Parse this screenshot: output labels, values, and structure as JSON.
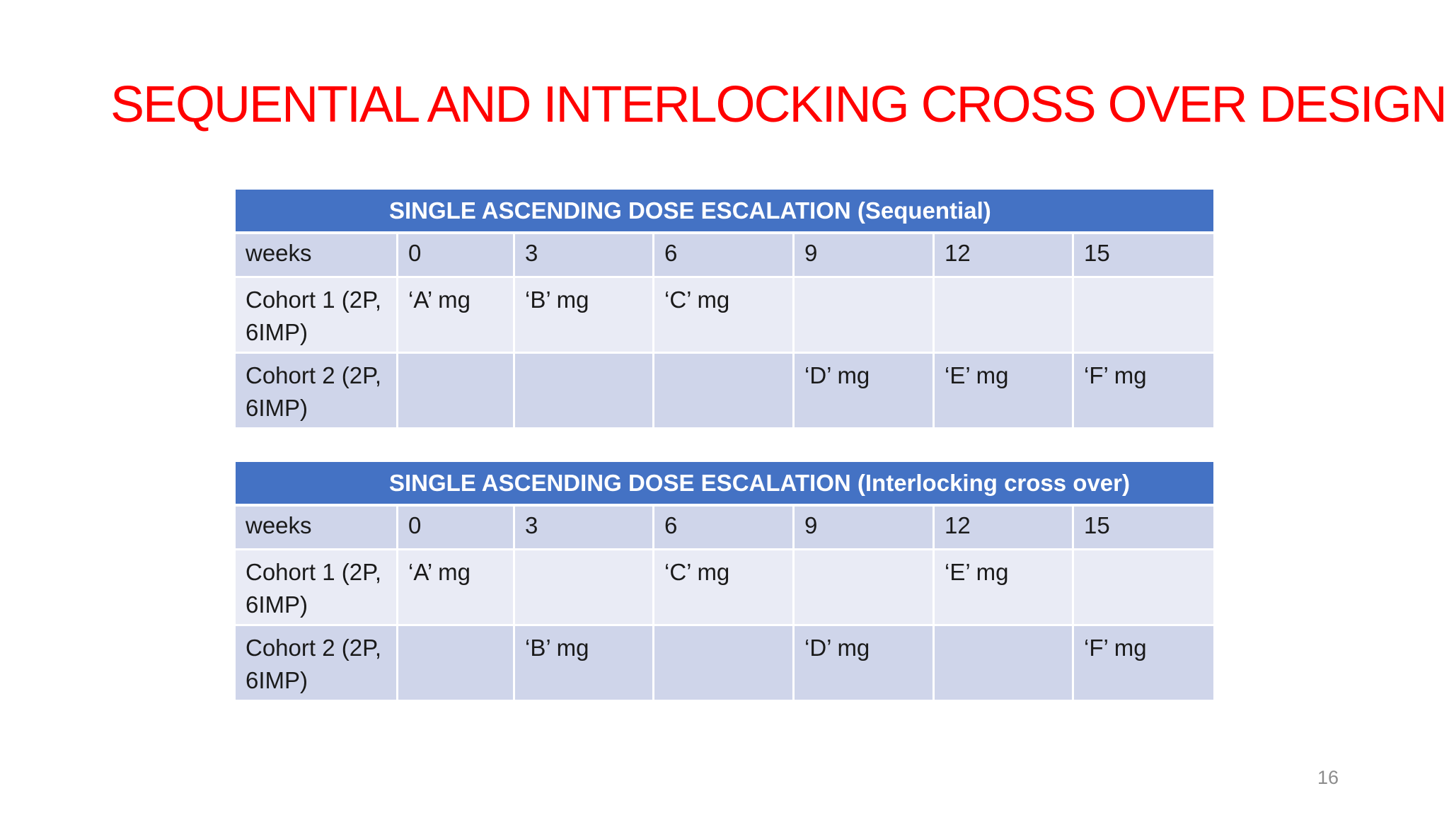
{
  "slide": {
    "title": "SEQUENTIAL AND INTERLOCKING CROSS OVER DESIGN",
    "page_number": "16"
  },
  "table1": {
    "caption": "SINGLE ASCENDING DOSE ESCALATION (Sequential)",
    "weeks_row": [
      "weeks",
      "0",
      "3",
      "6",
      "9",
      "12",
      "15"
    ],
    "cohort1_row": [
      "Cohort 1 (2P, 6IMP)",
      "‘A’ mg",
      "‘B’ mg",
      "‘C’ mg",
      "",
      "",
      ""
    ],
    "cohort2_row": [
      "Cohort 2 (2P, 6IMP)",
      "",
      "",
      "",
      "‘D’ mg",
      "‘E’ mg",
      "‘F’ mg"
    ]
  },
  "table2": {
    "caption": "SINGLE ASCENDING DOSE ESCALATION (Interlocking cross over)",
    "weeks_row": [
      "weeks",
      "0",
      "3",
      "6",
      "9",
      "12",
      "15"
    ],
    "cohort1_row": [
      "Cohort 1 (2P, 6IMP)",
      "‘A’ mg",
      "",
      "‘C’ mg",
      "",
      "‘E’ mg",
      ""
    ],
    "cohort2_row": [
      "Cohort 2 (2P, 6IMP)",
      "",
      "‘B’ mg",
      "",
      "‘D’ mg",
      "",
      "‘F’ mg"
    ]
  },
  "colors": {
    "title": "#ff0000",
    "header_band": "#4472c4",
    "row_dark": "#cfd5ea",
    "row_light": "#e9ebf5"
  }
}
